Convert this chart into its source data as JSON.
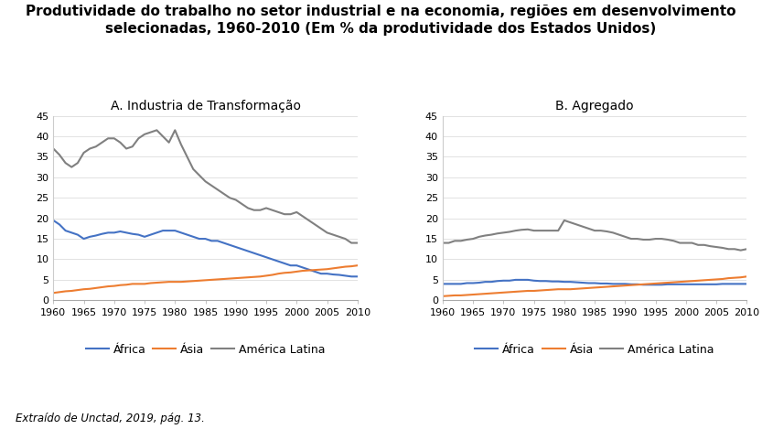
{
  "title": "Produtividade do trabalho no setor industrial e na economia, regiões em desenvolvimento\nselecionadas, 1960-2010 (Em % da produtividade dos Estados Unidos)",
  "subtitle_A": "A. Industria de Transformação",
  "subtitle_B": "B. Agregado",
  "footnote": "Extraído de Unctad, 2019, pág. 13.",
  "years": [
    1960,
    1961,
    1962,
    1963,
    1964,
    1965,
    1966,
    1967,
    1968,
    1969,
    1970,
    1971,
    1972,
    1973,
    1974,
    1975,
    1976,
    1977,
    1978,
    1979,
    1980,
    1981,
    1982,
    1983,
    1984,
    1985,
    1986,
    1987,
    1988,
    1989,
    1990,
    1991,
    1992,
    1993,
    1994,
    1995,
    1996,
    1997,
    1998,
    1999,
    2000,
    2001,
    2002,
    2003,
    2004,
    2005,
    2006,
    2007,
    2008,
    2009,
    2010
  ],
  "panel_A": {
    "africa": [
      19.5,
      18.5,
      17.0,
      16.5,
      16.0,
      15.0,
      15.5,
      15.8,
      16.2,
      16.5,
      16.5,
      16.8,
      16.5,
      16.2,
      16.0,
      15.5,
      16.0,
      16.5,
      17.0,
      17.0,
      17.0,
      16.5,
      16.0,
      15.5,
      15.0,
      15.0,
      14.5,
      14.5,
      14.0,
      13.5,
      13.0,
      12.5,
      12.0,
      11.5,
      11.0,
      10.5,
      10.0,
      9.5,
      9.0,
      8.5,
      8.5,
      8.0,
      7.5,
      7.0,
      6.5,
      6.5,
      6.3,
      6.2,
      6.0,
      5.8,
      5.8
    ],
    "asia": [
      1.8,
      2.0,
      2.2,
      2.3,
      2.5,
      2.7,
      2.8,
      3.0,
      3.2,
      3.4,
      3.5,
      3.7,
      3.8,
      4.0,
      4.0,
      4.0,
      4.2,
      4.3,
      4.4,
      4.5,
      4.5,
      4.5,
      4.6,
      4.7,
      4.8,
      4.9,
      5.0,
      5.1,
      5.2,
      5.3,
      5.4,
      5.5,
      5.6,
      5.7,
      5.8,
      6.0,
      6.2,
      6.5,
      6.7,
      6.8,
      7.0,
      7.2,
      7.3,
      7.4,
      7.5,
      7.6,
      7.8,
      8.0,
      8.2,
      8.3,
      8.5
    ],
    "latin_america": [
      37.0,
      35.5,
      33.5,
      32.5,
      33.5,
      36.0,
      37.0,
      37.5,
      38.5,
      39.5,
      39.5,
      38.5,
      37.0,
      37.5,
      39.5,
      40.5,
      41.0,
      41.5,
      40.0,
      38.5,
      41.5,
      38.0,
      35.0,
      32.0,
      30.5,
      29.0,
      28.0,
      27.0,
      26.0,
      25.0,
      24.5,
      23.5,
      22.5,
      22.0,
      22.0,
      22.5,
      22.0,
      21.5,
      21.0,
      21.0,
      21.5,
      20.5,
      19.5,
      18.5,
      17.5,
      16.5,
      16.0,
      15.5,
      15.0,
      14.0,
      14.0
    ]
  },
  "panel_B": {
    "africa": [
      4.0,
      4.0,
      4.0,
      4.0,
      4.2,
      4.2,
      4.3,
      4.5,
      4.5,
      4.7,
      4.8,
      4.8,
      5.0,
      5.0,
      5.0,
      4.8,
      4.7,
      4.7,
      4.6,
      4.6,
      4.5,
      4.5,
      4.4,
      4.3,
      4.2,
      4.2,
      4.1,
      4.1,
      4.0,
      4.0,
      4.0,
      3.9,
      3.9,
      3.8,
      3.8,
      3.8,
      3.8,
      3.9,
      3.9,
      3.9,
      3.9,
      3.9,
      3.9,
      3.9,
      3.9,
      3.9,
      4.0,
      4.0,
      4.0,
      4.0,
      4.0
    ],
    "asia": [
      1.0,
      1.1,
      1.2,
      1.2,
      1.3,
      1.4,
      1.5,
      1.6,
      1.7,
      1.8,
      1.9,
      2.0,
      2.1,
      2.2,
      2.3,
      2.3,
      2.4,
      2.5,
      2.6,
      2.7,
      2.7,
      2.7,
      2.8,
      2.9,
      3.0,
      3.1,
      3.2,
      3.3,
      3.4,
      3.5,
      3.6,
      3.7,
      3.8,
      3.9,
      4.0,
      4.1,
      4.2,
      4.3,
      4.4,
      4.5,
      4.6,
      4.7,
      4.8,
      4.9,
      5.0,
      5.1,
      5.2,
      5.4,
      5.5,
      5.6,
      5.8
    ],
    "latin_america": [
      14.0,
      14.0,
      14.5,
      14.5,
      14.8,
      15.0,
      15.5,
      15.8,
      16.0,
      16.3,
      16.5,
      16.7,
      17.0,
      17.2,
      17.3,
      17.0,
      17.0,
      17.0,
      17.0,
      17.0,
      19.5,
      19.0,
      18.5,
      18.0,
      17.5,
      17.0,
      17.0,
      16.8,
      16.5,
      16.0,
      15.5,
      15.0,
      15.0,
      14.8,
      14.8,
      15.0,
      15.0,
      14.8,
      14.5,
      14.0,
      14.0,
      14.0,
      13.5,
      13.5,
      13.2,
      13.0,
      12.8,
      12.5,
      12.5,
      12.2,
      12.5
    ]
  },
  "colors": {
    "africa": "#4472C4",
    "asia": "#ED7D31",
    "latin_america": "#808080"
  },
  "ylim": [
    0,
    45
  ],
  "yticks": [
    0,
    5,
    10,
    15,
    20,
    25,
    30,
    35,
    40,
    45
  ],
  "xticks": [
    1960,
    1965,
    1970,
    1975,
    1980,
    1985,
    1990,
    1995,
    2000,
    2005,
    2010
  ],
  "legend_labels": [
    "África",
    "Ásia",
    "América Latina"
  ],
  "line_width": 1.5,
  "title_fontsize": 11,
  "subtitle_fontsize": 10,
  "tick_fontsize": 8,
  "legend_fontsize": 9,
  "footnote_fontsize": 8.5
}
